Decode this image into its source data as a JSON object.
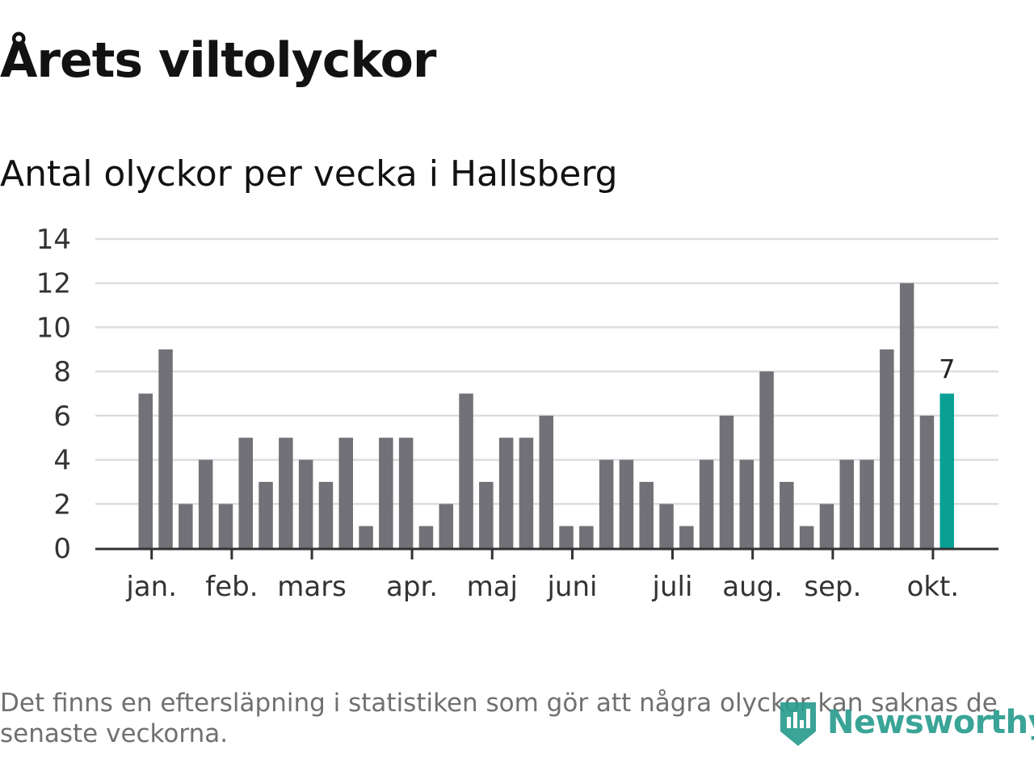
{
  "header": {
    "title": "Årets viltolyckor",
    "subtitle": "Antal olyckor per vecka i Hallsberg"
  },
  "footer": {
    "note": "Det finns en eftersläpning i statistiken som gör att några olyckor kan saknas de senaste veckorna.",
    "logo_text": "Newsworthy"
  },
  "colors": {
    "bar": "#727177",
    "highlight": "#0aa194",
    "grid": "#dddddd",
    "axis": "#333333"
  },
  "chart_data": {
    "type": "bar",
    "title": "Årets viltolyckor",
    "subtitle": "Antal olyckor per vecka i Hallsberg",
    "xlabel": "",
    "ylabel": "",
    "ylim": [
      0,
      14
    ],
    "yticks": [
      0,
      2,
      4,
      6,
      8,
      10,
      12,
      14
    ],
    "grid": true,
    "values": [
      7,
      9,
      2,
      4,
      2,
      5,
      3,
      5,
      4,
      3,
      5,
      1,
      5,
      5,
      1,
      2,
      7,
      3,
      5,
      5,
      6,
      1,
      1,
      4,
      4,
      3,
      2,
      1,
      4,
      6,
      4,
      8,
      3,
      1,
      2,
      4,
      4,
      9,
      12,
      6,
      7
    ],
    "highlight_index": 40,
    "highlight_label": "7",
    "month_ticks": [
      {
        "label": "jan.",
        "index": 0.3
      },
      {
        "label": "feb.",
        "index": 4.3
      },
      {
        "label": "mars",
        "index": 8.3
      },
      {
        "label": "apr.",
        "index": 13.3
      },
      {
        "label": "maj",
        "index": 17.3
      },
      {
        "label": "juni",
        "index": 21.3
      },
      {
        "label": "juli",
        "index": 26.3
      },
      {
        "label": "aug.",
        "index": 30.3
      },
      {
        "label": "sep.",
        "index": 34.3
      },
      {
        "label": "okt.",
        "index": 39.3
      }
    ]
  }
}
